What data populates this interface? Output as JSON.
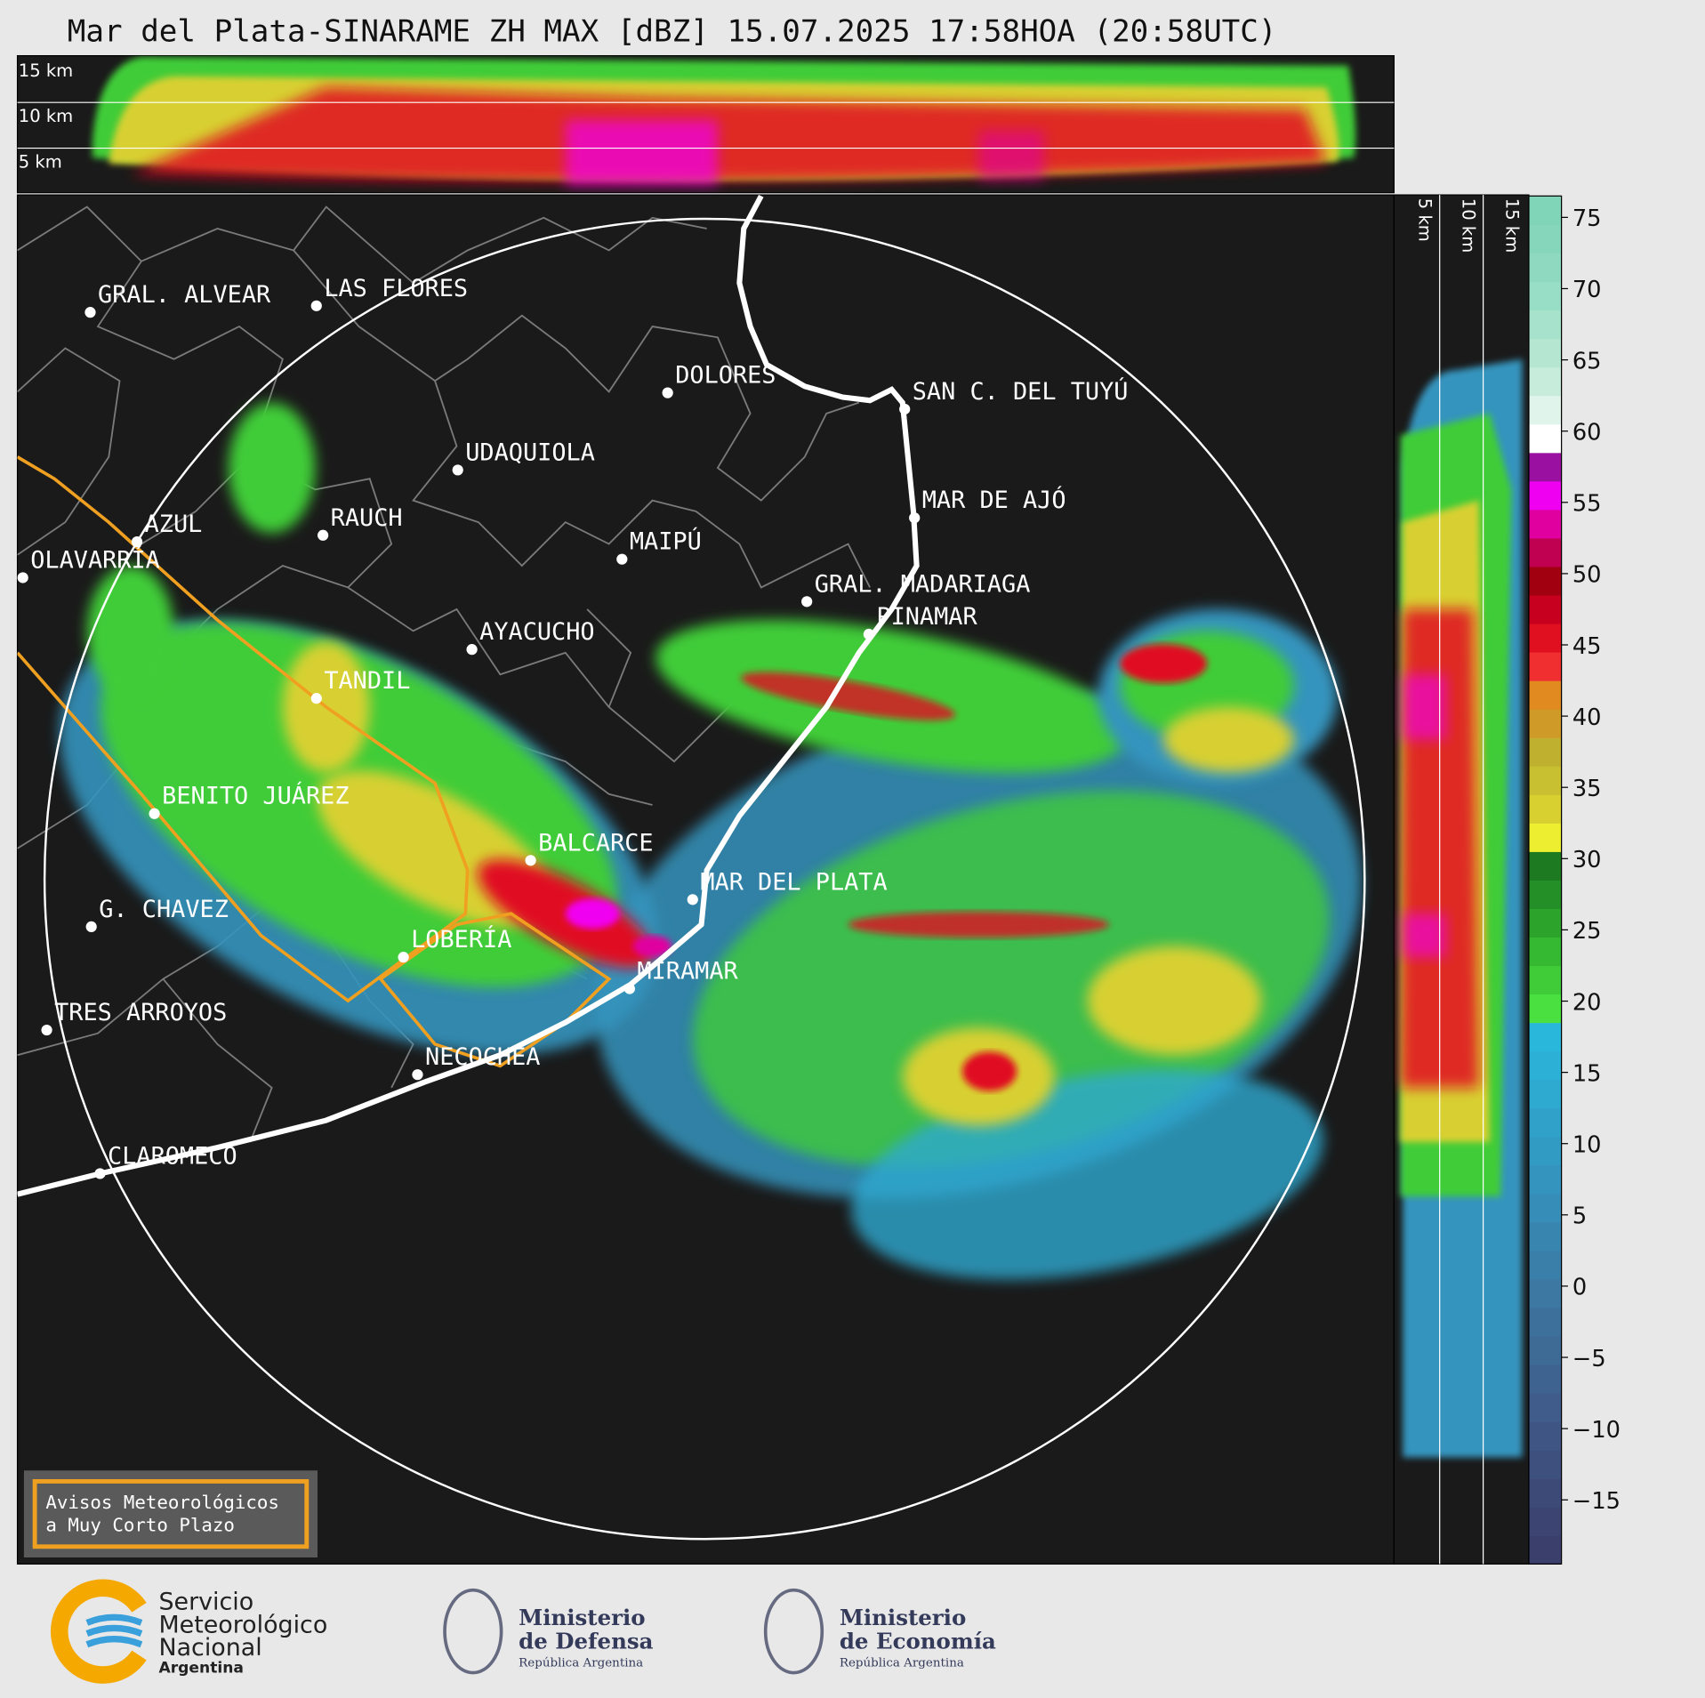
{
  "title": "Mar del Plata-SINARAME ZH MAX [dBZ] 15.07.2025 17:58HOA (20:58UTC)",
  "top_panel_labels": [
    "15 km",
    "10 km",
    "5 km"
  ],
  "side_panel_labels": [
    "5 km",
    "10 km",
    "15 km"
  ],
  "cities": [
    "GRAL. ALVEAR",
    "LAS FLORES",
    "DOLORES",
    "SAN C. DEL TUYÚ",
    "UDAQUIOLA",
    "MAR DE AJÓ",
    "AZUL",
    "RAUCH",
    "MAIPÚ",
    "OLAVARRÍA",
    "GRAL. MADARIAGA",
    "PINAMAR",
    "AYACUCHO",
    "TANDIL",
    "BENITO JUÁREZ",
    "BALCARCE",
    "MAR DEL PLATA",
    "G. CHAVEZ",
    "LOBERÍA",
    "MIRAMAR",
    "TRES ARROYOS",
    "NECOCHEA",
    "CLAROMECO"
  ],
  "colorbar": {
    "ylim": [
      -19.5,
      76.5
    ],
    "yticks": [
      75,
      70,
      65,
      60,
      55,
      50,
      45,
      40,
      35,
      30,
      25,
      20,
      15,
      10,
      5,
      0,
      {
        "value": -5,
        "label": "−5"
      },
      {
        "value": -10,
        "label": "−10"
      },
      {
        "value": -15,
        "label": "−15"
      }
    ],
    "colors": [
      "#3a3f6b",
      "#3c4472",
      "#3d4a78",
      "#3e507e",
      "#3f5684",
      "#405c8a",
      "#3f6390",
      "#3e6a96",
      "#3d719c",
      "#3c78a2",
      "#3a7fa9",
      "#3886b0",
      "#368db7",
      "#3494be",
      "#329bc4",
      "#30a2ca",
      "#2ea9d0",
      "#2cb0d6",
      "#2ab7dc",
      "#4ae040",
      "#3fcc38",
      "#35b832",
      "#2ca42c",
      "#248f26",
      "#1d7a20",
      "#eeee30",
      "#d8d030",
      "#c8c030",
      "#c0b030",
      "#d09a28",
      "#e08a20",
      "#f03030",
      "#e01020",
      "#c80020",
      "#a00010",
      "#c00050",
      "#e000a0",
      "#f000f0",
      "#9a10a0",
      "#ffffff",
      "#e0f4ec",
      "#c8ecdc",
      "#b4e6d2",
      "#a6e2cc",
      "#98dec6",
      "#8ed9c0",
      "#86d6bc",
      "#80d4b8"
    ]
  },
  "warning_box": [
    "Avisos Meteorológicos",
    "a Muy Corto Plazo"
  ],
  "footer": {
    "smn": [
      "Servicio",
      "Meteorológico",
      "Nacional",
      "Argentina"
    ],
    "defensa": [
      "Ministerio",
      "de Defensa",
      "República Argentina"
    ],
    "economia": [
      "Ministerio",
      "de Economía",
      "República Argentina"
    ]
  }
}
